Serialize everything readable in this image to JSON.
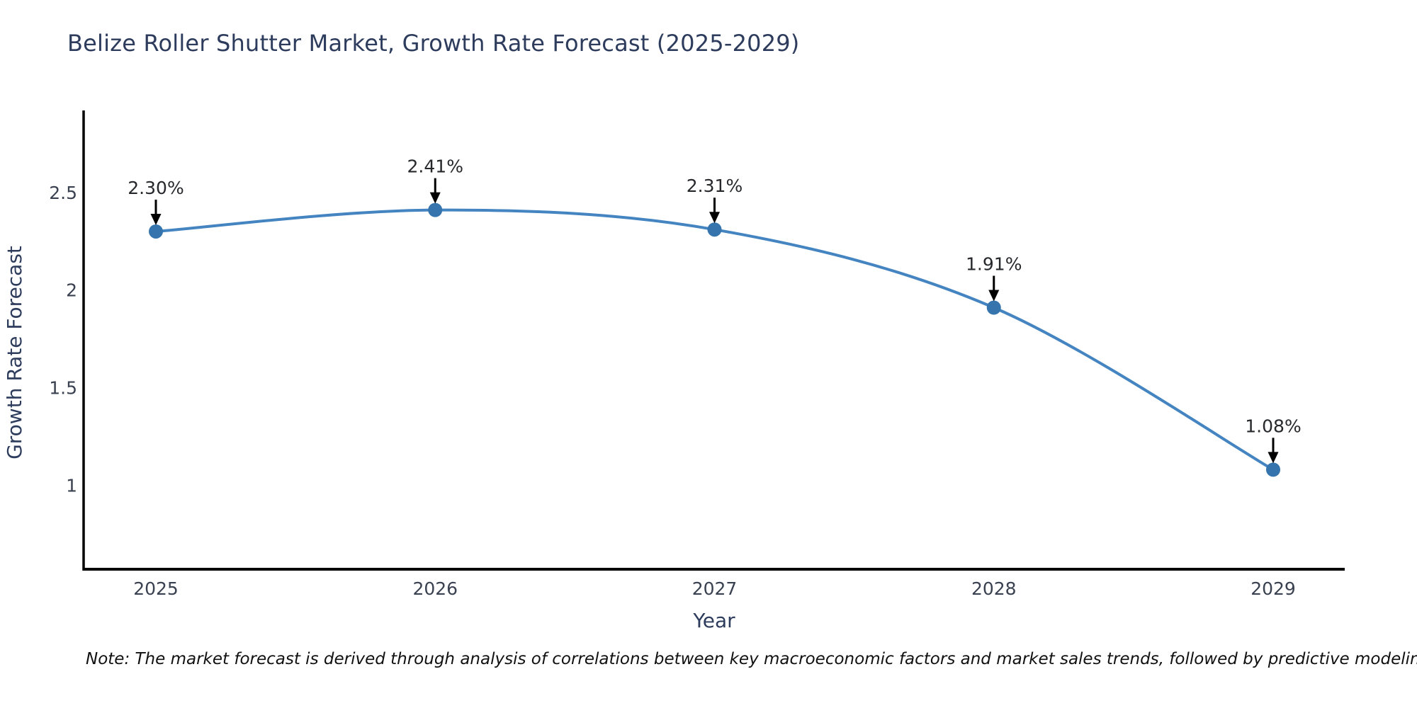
{
  "chart_data": {
    "type": "line",
    "title": "Belize Roller Shutter Market, Growth Rate Forecast (2025-2029)",
    "xlabel": "Year",
    "ylabel": "Growth Rate Forecast",
    "x": [
      2025,
      2026,
      2027,
      2028,
      2029
    ],
    "values": [
      2.3,
      2.41,
      2.31,
      1.91,
      1.08
    ],
    "point_labels": [
      "2.30%",
      "2.41%",
      "2.31%",
      "1.91%",
      "1.08%"
    ],
    "x_tick_labels": [
      "2025",
      "2026",
      "2027",
      "2028",
      "2029"
    ],
    "y_tick_values": [
      1,
      1.5,
      2,
      2.5
    ],
    "y_tick_labels": [
      "1",
      "1.5",
      "2",
      "2.5"
    ],
    "ylim": [
      0.57,
      2.92
    ],
    "grid": false,
    "legend": null,
    "line_color": "#4484c0",
    "marker_color": "#3674ae",
    "annotation_arrow_color": "#000000"
  },
  "footnote": {
    "text": "Note: The market forecast is derived through analysis of correlations between key macroeconomic factors and market sales trends, followed by predictive modeling to project future sales"
  },
  "colors": {
    "title": "#2d3c5c",
    "axis_label": "#2d3c5c",
    "tick_label": "#3a4150",
    "annotation_text": "#26282c",
    "footnote_text": "#111111",
    "spine": "#000000",
    "background": "#ffffff"
  }
}
